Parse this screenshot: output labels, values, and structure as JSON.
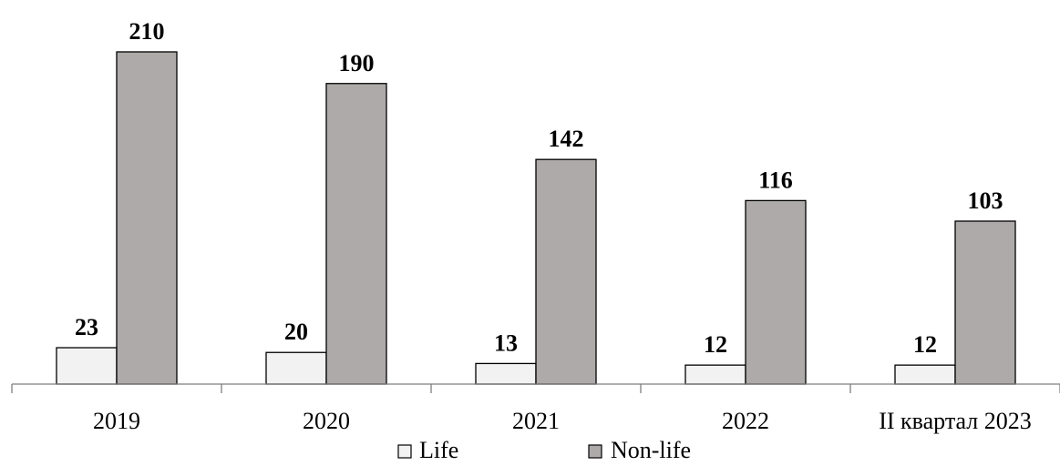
{
  "chart_data": {
    "type": "bar",
    "title": "",
    "xlabel": "",
    "ylabel": "",
    "categories": [
      "2019",
      "2020",
      "2021",
      "2022",
      "II квартал 2023"
    ],
    "series": [
      {
        "name": "Life",
        "color": "#f2f2f2",
        "values": [
          23,
          20,
          13,
          12,
          12
        ]
      },
      {
        "name": "Non-life",
        "color": "#aeaaaa",
        "values": [
          210,
          190,
          142,
          116,
          103
        ]
      }
    ],
    "ylim": [
      0,
      210
    ],
    "grid": false,
    "legend_position": "bottom"
  }
}
